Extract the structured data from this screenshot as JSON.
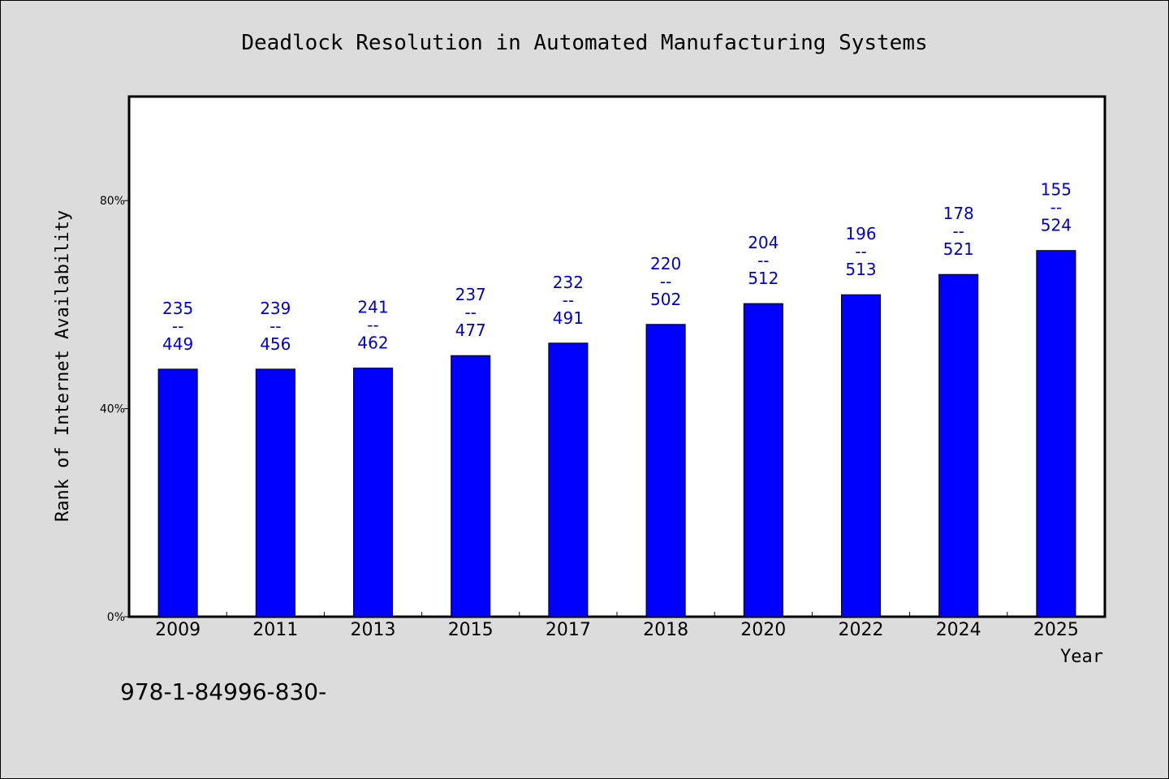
{
  "chart_data": {
    "type": "bar",
    "title": "Deadlock Resolution in Automated Manufacturing Systems",
    "xlabel": "Year",
    "ylabel": "Rank of Internet Availability",
    "categories": [
      "2009",
      "2011",
      "2013",
      "2015",
      "2017",
      "2018",
      "2020",
      "2022",
      "2024",
      "2025"
    ],
    "values": [
      47.6,
      47.6,
      47.8,
      50.2,
      52.6,
      56.2,
      60.2,
      61.9,
      65.8,
      70.4
    ],
    "data_labels": [
      [
        "235",
        "--",
        "449"
      ],
      [
        "239",
        "--",
        "456"
      ],
      [
        "241",
        "--",
        "462"
      ],
      [
        "237",
        "--",
        "477"
      ],
      [
        "232",
        "--",
        "491"
      ],
      [
        "220",
        "--",
        "502"
      ],
      [
        "204",
        "--",
        "512"
      ],
      [
        "196",
        "--",
        "513"
      ],
      [
        "178",
        "--",
        "521"
      ],
      [
        "155",
        "--",
        "524"
      ]
    ],
    "ylim": [
      0,
      100
    ],
    "yticks": [
      0,
      40,
      80
    ],
    "ytick_labels": [
      "0%",
      "40%",
      "80%"
    ],
    "grid": false,
    "bar_color": "#0000ff",
    "label_color": "#0000cc"
  },
  "footnote": "978-1-84996-830-"
}
